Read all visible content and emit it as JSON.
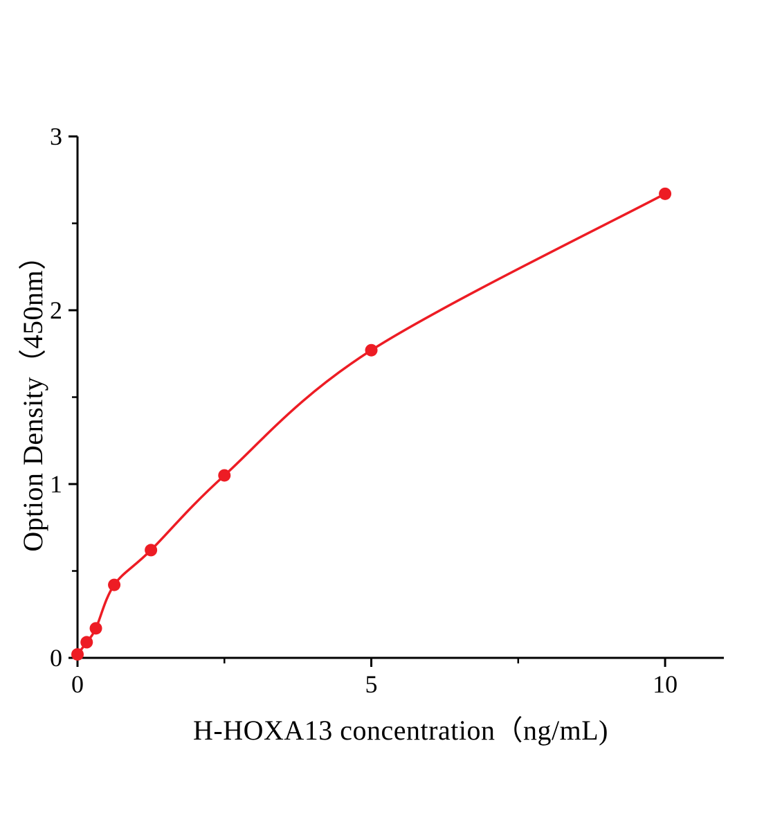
{
  "chart_data": {
    "type": "scatter",
    "title": "",
    "xlabel": "H-HOXA13 concentration（ng/mL)",
    "ylabel": "Option Density（450nm）",
    "x": [
      0,
      0.156,
      0.3125,
      0.625,
      1.25,
      2.5,
      5,
      10
    ],
    "y": [
      0.02,
      0.09,
      0.17,
      0.42,
      0.62,
      1.05,
      1.77,
      2.67
    ],
    "xlim": [
      0,
      11
    ],
    "ylim": [
      0,
      3
    ],
    "xticks": [
      0,
      5,
      10
    ],
    "yticks": [
      0,
      1,
      2,
      3
    ],
    "x_minor_ticks": [
      2.5,
      7.5
    ],
    "y_minor_ticks": [
      0.5,
      1.5,
      2.5
    ],
    "curve": "smooth fitted standard curve through data points",
    "line_color": "#ed1c24",
    "marker_color": "#ed1c24",
    "axis_color": "#000000",
    "marker_radius": 9,
    "legend": null,
    "grid": false
  }
}
